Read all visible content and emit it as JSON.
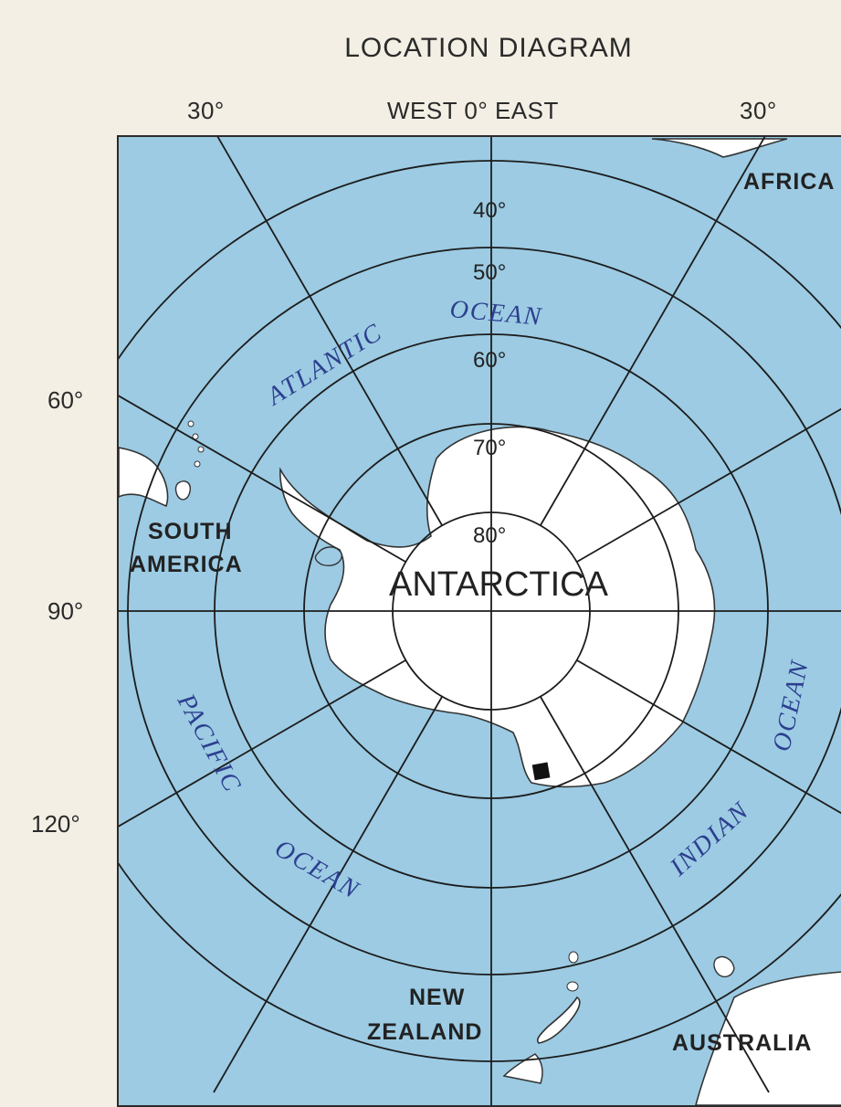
{
  "title": "LOCATION DIAGRAM",
  "longitude_labels": {
    "west_30": "30°",
    "center": "WEST 0° EAST",
    "east_30": "30°"
  },
  "latitude_ring_labels": [
    "40°",
    "50°",
    "60°",
    "70°",
    "80°"
  ],
  "side_labels": {
    "lon_60": "60°",
    "lon_90": "90°",
    "lon_120": "120°"
  },
  "regions": {
    "antarctica": "ANTARCTICA",
    "south_america_line1": "SOUTH",
    "south_america_line2": "AMERICA",
    "africa": "AFRICA",
    "new_zealand_line1": "NEW",
    "new_zealand_line2": "ZEALAND",
    "australia": "AUSTRALIA"
  },
  "oceans": {
    "atlantic": "ATLANTIC",
    "atlantic_ocean": "OCEAN",
    "pacific": "PACIFIC",
    "pacific_ocean": "OCEAN",
    "indian": "INDIAN",
    "indian_ocean": "OCEAN"
  },
  "colors": {
    "ocean": "#9ccbe3",
    "land": "#ffffff",
    "grid": "#1c1c1c",
    "ocean_label": "#2c3f8f",
    "marker": "#111111"
  },
  "marker": "location-marker"
}
